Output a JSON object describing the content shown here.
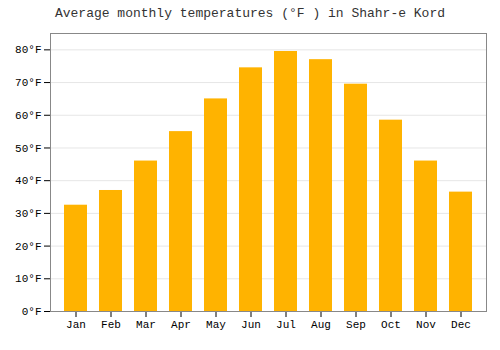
{
  "chart_data": {
    "type": "bar",
    "title": "Average monthly temperatures (°F ) in Shahr-e Kord",
    "categories": [
      "Jan",
      "Feb",
      "Mar",
      "Apr",
      "May",
      "Jun",
      "Jul",
      "Aug",
      "Sep",
      "Oct",
      "Nov",
      "Dec"
    ],
    "values": [
      32.5,
      37.0,
      46.0,
      55.0,
      65.0,
      74.5,
      79.5,
      77.0,
      69.5,
      58.5,
      46.0,
      36.5
    ],
    "color": "#FFB300",
    "ylim": [
      0,
      85
    ],
    "yticks": [
      {
        "value": 0,
        "label": "0°F"
      },
      {
        "value": 10,
        "label": "10°F"
      },
      {
        "value": 20,
        "label": "20°F"
      },
      {
        "value": 30,
        "label": "30°F"
      },
      {
        "value": 40,
        "label": "40°F"
      },
      {
        "value": 50,
        "label": "50°F"
      },
      {
        "value": 60,
        "label": "60°F"
      },
      {
        "value": 70,
        "label": "70°F"
      },
      {
        "value": 80,
        "label": "80°F"
      }
    ],
    "grid": true
  }
}
